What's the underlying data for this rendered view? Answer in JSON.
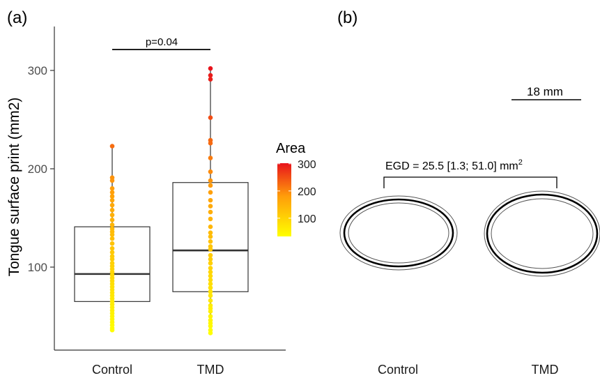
{
  "panels": {
    "a_label": "(a)",
    "b_label": "(b)"
  },
  "chart_data": [
    {
      "type": "boxplot",
      "ylabel": "Tongue surface print (mm2)",
      "xlabel": "",
      "ylim": [
        25,
        345
      ],
      "yticks": [
        100,
        200,
        300
      ],
      "categories": [
        "Control",
        "TMD"
      ],
      "boxes": [
        {
          "name": "Control",
          "q1": 65,
          "median": 93,
          "q3": 141,
          "whisker_low": 36,
          "whisker_high": 223
        },
        {
          "name": "TMD",
          "q1": 75,
          "median": 117,
          "q3": 186,
          "whisker_low": 33,
          "whisker_high": 302
        }
      ],
      "points": {
        "Control": [
          223,
          191,
          188,
          180,
          176,
          172,
          168,
          163,
          158,
          153,
          148,
          143,
          139,
          136,
          133,
          129,
          124,
          119,
          115,
          111,
          108,
          104,
          101,
          98,
          95,
          92,
          89,
          86,
          83,
          80,
          77,
          74,
          71,
          68,
          65,
          62,
          59,
          56,
          53,
          50,
          47,
          44,
          41,
          38,
          36
        ],
        "TMD": [
          302,
          295,
          291,
          252,
          229,
          226,
          211,
          197,
          188,
          183,
          176,
          168,
          162,
          156,
          149,
          141,
          135,
          131,
          126,
          121,
          118,
          112,
          108,
          104,
          99,
          95,
          91,
          87,
          83,
          79,
          75,
          71,
          66,
          61,
          58,
          55,
          50,
          46,
          43,
          40,
          36,
          33
        ]
      },
      "annotation": {
        "text": "p=0.04"
      },
      "legend": {
        "title": "Area",
        "ticks": [
          100,
          200,
          300
        ],
        "range": [
          33,
          302
        ],
        "color_low": "#ffff00",
        "color_high": "#e8141c",
        "placement": "right"
      },
      "grid": false
    }
  ],
  "panel_b": {
    "scale_bar_label": "18 mm",
    "egd_text": "EGD = 25.5 [1.3; 51.0] mm",
    "egd_superscript": "2",
    "categories": [
      "Control",
      "TMD"
    ]
  }
}
